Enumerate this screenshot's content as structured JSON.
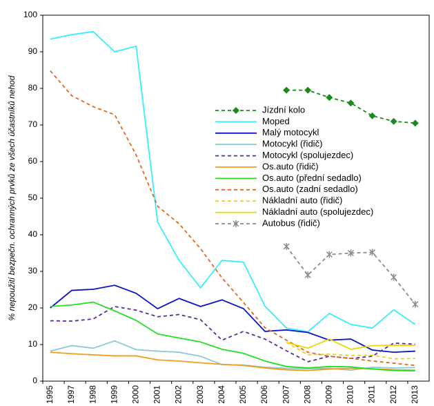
{
  "chart_data": {
    "type": "line",
    "y_label": "% nepoužití bezpečn. ochranných prvků ze všech účastníků nehod",
    "categories": [
      "1995",
      "1997",
      "1998",
      "1999",
      "2000",
      "2001",
      "2002",
      "2003",
      "2004",
      "2005",
      "2006",
      "2007",
      "2008",
      "2009",
      "2010",
      "2011",
      "2012",
      "2013"
    ],
    "ylim": [
      0,
      100
    ],
    "yticks": [
      0,
      10,
      20,
      30,
      40,
      50,
      60,
      70,
      80,
      90,
      100
    ],
    "grid": false,
    "legend": "upper-right",
    "series": [
      {
        "name": "Jízdní kolo",
        "color": "#1a8a1a",
        "dash": true,
        "marker": "diamond",
        "values": [
          null,
          null,
          null,
          null,
          null,
          null,
          null,
          null,
          null,
          null,
          null,
          79.5,
          79.5,
          77.5,
          76,
          72.5,
          71,
          70.5
        ]
      },
      {
        "name": "Moped",
        "color": "#33eeff",
        "dash": false,
        "values": [
          93.5,
          94.7,
          95.5,
          90,
          91.5,
          43.5,
          33,
          25.5,
          33,
          32.5,
          20.5,
          14.5,
          13.5,
          18.5,
          15.5,
          14.5,
          19.5,
          15.5
        ]
      },
      {
        "name": "Malý motocykl",
        "color": "#0a14c8",
        "dash": false,
        "values": [
          20,
          24.8,
          25.1,
          26.2,
          24,
          19.8,
          22.6,
          20.4,
          22.2,
          19.8,
          13.6,
          14,
          13.3,
          11.2,
          11.5,
          8.5,
          7.9,
          8.2
        ]
      },
      {
        "name": "Motocykl (řidič)",
        "color": "#8ec8d4",
        "dash": false,
        "values": [
          8.2,
          9.7,
          9,
          11,
          8.6,
          8.2,
          7.9,
          6.8,
          4.5,
          4.4,
          3.8,
          3.5,
          3.4,
          3.5,
          3,
          3.8,
          3.6,
          3.7
        ]
      },
      {
        "name": "Motocykl (spolujezdec)",
        "color": "#5a2a9a",
        "dash": true,
        "values": [
          16.5,
          16.4,
          17,
          20.4,
          19.4,
          17.6,
          18.2,
          16.8,
          11.2,
          13.6,
          11.5,
          8.3,
          5.3,
          6.8,
          6.2,
          6.8,
          10.4,
          10.1
        ]
      },
      {
        "name": "Os.auto (řidič)",
        "color": "#f59a1a",
        "dash": false,
        "values": [
          7.9,
          7.5,
          7.2,
          6.9,
          6.9,
          5.8,
          5.5,
          5,
          4.6,
          4.3,
          3.6,
          3.1,
          2.9,
          3.3,
          3.5,
          3.4,
          3.1,
          3
        ]
      },
      {
        "name": "Os.auto (přední sedadlo)",
        "color": "#22e022",
        "dash": false,
        "values": [
          20.4,
          20.8,
          21.6,
          19.2,
          16.6,
          12.9,
          11.8,
          10.7,
          8.7,
          7.6,
          5.5,
          4,
          3.6,
          4,
          3.9,
          3.3,
          2.9,
          2.8
        ]
      },
      {
        "name": "Os.auto (zadní sedadlo)",
        "color": "#e8641a",
        "dash": true,
        "values": [
          84.8,
          78,
          75,
          72.8,
          61.8,
          47.8,
          43,
          36.2,
          28.2,
          21.5,
          14.6,
          11.2,
          7.9,
          6.8,
          6.2,
          5.5,
          4.9,
          4.3
        ]
      },
      {
        "name": "Nákladní auto (řidič)",
        "color": "#e8d21a",
        "dash": true,
        "values": [
          null,
          null,
          null,
          null,
          null,
          null,
          null,
          null,
          null,
          null,
          null,
          10.6,
          7.2,
          7.4,
          7,
          7.1,
          6.1,
          6.2
        ]
      },
      {
        "name": "Nákladní auto (spolujezdec)",
        "color": "#e8d800",
        "dash": false,
        "values": [
          null,
          null,
          null,
          null,
          null,
          null,
          null,
          null,
          null,
          null,
          null,
          10.6,
          9,
          11.5,
          8.7,
          9.7,
          9.8,
          9.8
        ]
      },
      {
        "name": "Autobus (řidič)",
        "color": "#8c8c8c",
        "dash": true,
        "marker": "star",
        "values": [
          null,
          null,
          null,
          null,
          null,
          null,
          null,
          null,
          null,
          null,
          null,
          36.8,
          29,
          34.6,
          35,
          35.2,
          28.4,
          21
        ]
      }
    ]
  }
}
